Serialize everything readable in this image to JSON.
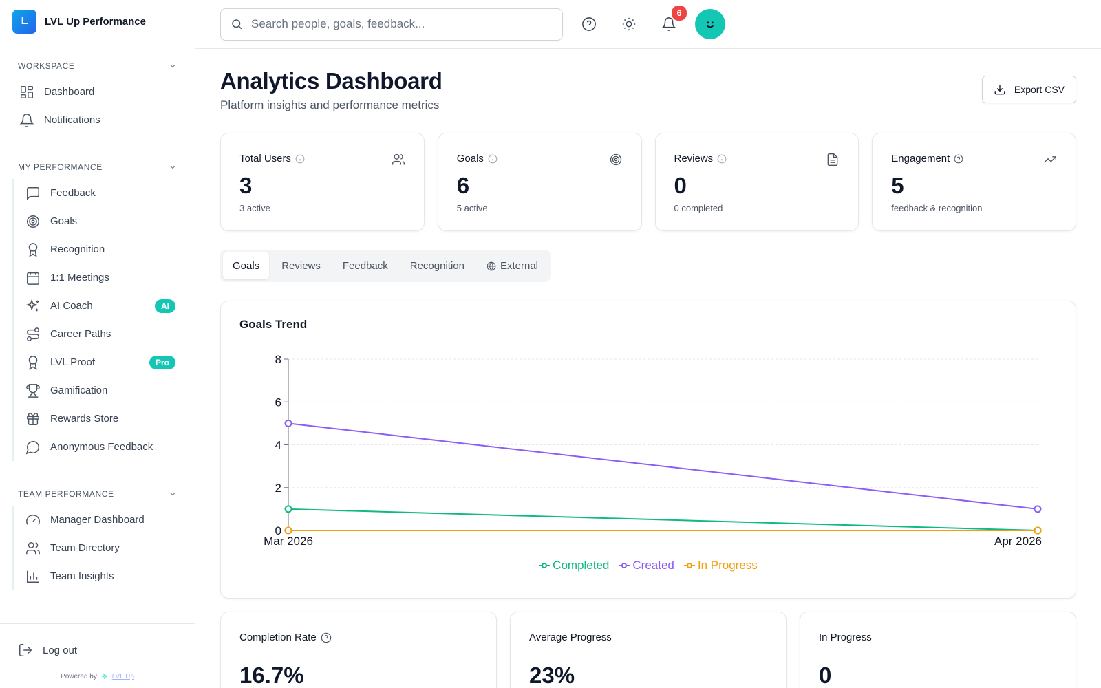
{
  "brand": {
    "logo_letter": "L",
    "name": "LVL Up Performance"
  },
  "sidebar": {
    "workspace": {
      "title": "WORKSPACE",
      "items": [
        {
          "label": "Dashboard",
          "icon": "grid-icon"
        },
        {
          "label": "Notifications",
          "icon": "bell-icon"
        }
      ]
    },
    "my_performance": {
      "title": "MY PERFORMANCE",
      "items": [
        {
          "label": "Feedback",
          "icon": "message-icon"
        },
        {
          "label": "Goals",
          "icon": "target-icon"
        },
        {
          "label": "Recognition",
          "icon": "award-icon"
        },
        {
          "label": "1:1 Meetings",
          "icon": "calendar-icon"
        },
        {
          "label": "AI Coach",
          "icon": "sparkles-icon",
          "badge": "AI"
        },
        {
          "label": "Career Paths",
          "icon": "route-icon"
        },
        {
          "label": "LVL Proof",
          "icon": "award-icon",
          "badge": "Pro"
        },
        {
          "label": "Gamification",
          "icon": "trophy-icon"
        },
        {
          "label": "Rewards Store",
          "icon": "gift-icon"
        },
        {
          "label": "Anonymous Feedback",
          "icon": "chat-bubble-icon"
        }
      ]
    },
    "team_performance": {
      "title": "TEAM PERFORMANCE",
      "items": [
        {
          "label": "Manager Dashboard",
          "icon": "gauge-icon"
        },
        {
          "label": "Team Directory",
          "icon": "users-icon"
        },
        {
          "label": "Team Insights",
          "icon": "bar-chart-icon"
        }
      ]
    },
    "logout_label": "Log out",
    "powered_by": "Powered by",
    "powered_logo": "LVL Up"
  },
  "topbar": {
    "search_placeholder": "Search people, goals, feedback...",
    "notification_count": "6"
  },
  "page": {
    "title": "Analytics Dashboard",
    "subtitle": "Platform insights and performance metrics",
    "export_label": "Export CSV"
  },
  "stats": [
    {
      "label": "Total Users",
      "value": "3",
      "note": "3 active",
      "icon": "users-icon"
    },
    {
      "label": "Goals",
      "value": "6",
      "note": "5 active",
      "icon": "target-icon"
    },
    {
      "label": "Reviews",
      "value": "0",
      "note": "0 completed",
      "icon": "file-icon"
    },
    {
      "label": "Engagement",
      "value": "5",
      "note": "feedback & recognition",
      "icon": "trending-up-icon"
    }
  ],
  "tabs": [
    "Goals",
    "Reviews",
    "Feedback",
    "Recognition",
    "External"
  ],
  "active_tab": "Goals",
  "chart_data": {
    "type": "line",
    "title": "Goals Trend",
    "x": [
      "Mar 2026",
      "Apr 2026"
    ],
    "series": [
      {
        "name": "Completed",
        "values": [
          1,
          0
        ],
        "color": "#10b981"
      },
      {
        "name": "Created",
        "values": [
          5,
          1
        ],
        "color": "#8b5cf6"
      },
      {
        "name": "In Progress",
        "values": [
          0,
          0
        ],
        "color": "#f59e0b"
      }
    ],
    "yticks": [
      "0",
      "2",
      "4",
      "6",
      "8"
    ],
    "ylim": [
      0,
      8
    ],
    "grid": true,
    "legend": "bottom"
  },
  "bottom_cards": [
    {
      "label": "Completion Rate",
      "value": "16.7%",
      "has_help": true
    },
    {
      "label": "Average Progress",
      "value": "23%",
      "has_help": false
    },
    {
      "label": "In Progress",
      "value": "0",
      "has_help": false
    }
  ]
}
